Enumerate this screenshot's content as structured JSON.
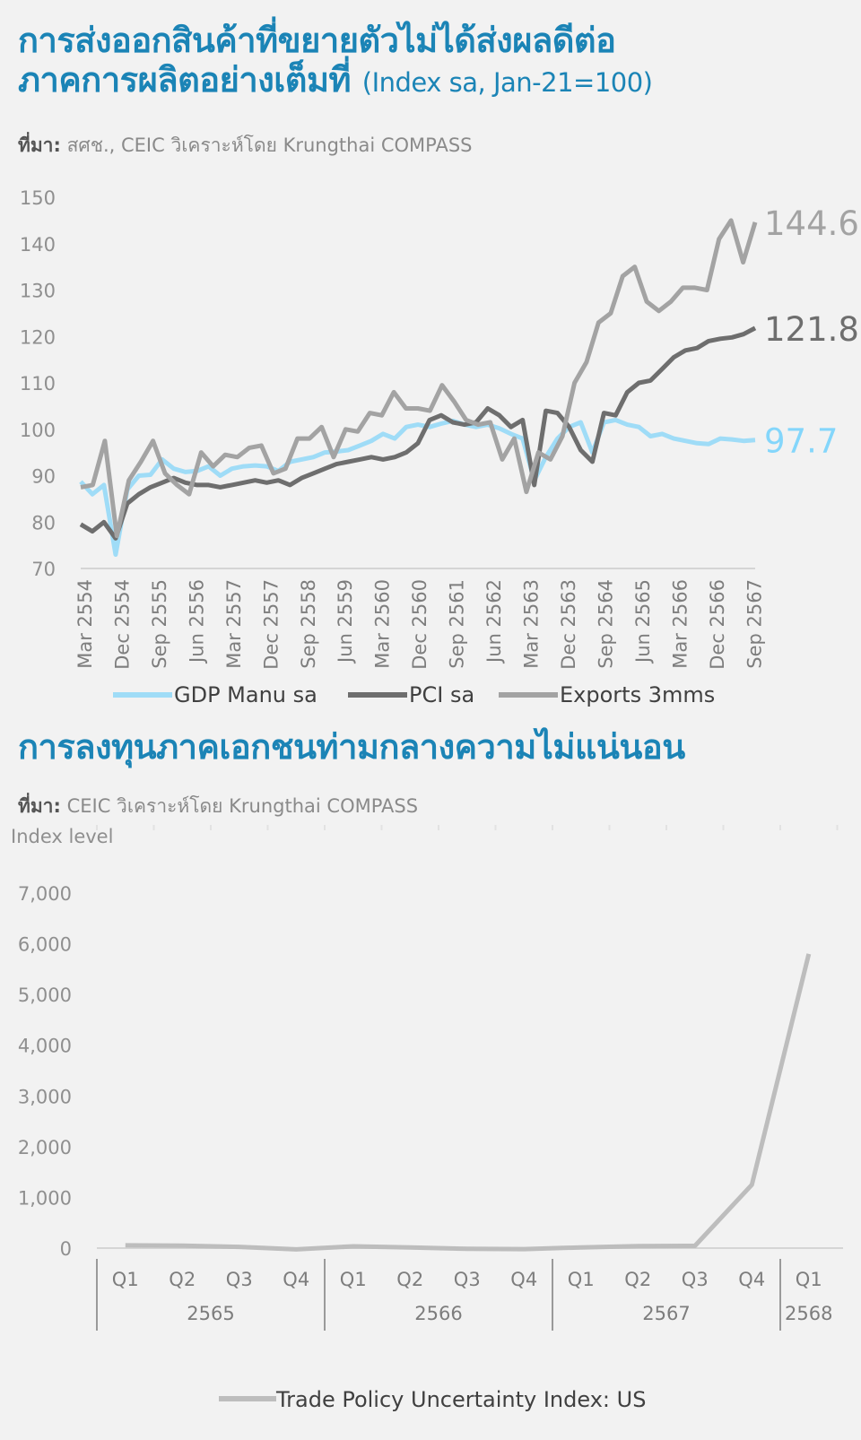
{
  "chart1": {
    "title_line1": "การส่งออกสินค้าที่ขยายตัวไม่ได้ส่งผลดีต่อ",
    "title_line2": "ภาคการผลิตอย่างเต็มที่",
    "title_unit": "(Index sa, Jan-21=100)",
    "source_label": "ที่มา:",
    "source_text": " สศช., CEIC  วิเคราะห์โดย Krungthai COMPASS"
  },
  "chart2": {
    "title": "การลงทุนภาคเอกชนท่ามกลางความไม่แน่นอน",
    "source_label": "ที่มา:",
    "source_text": " CEIC  วิเคราะห์โดย Krungthai COMPASS"
  },
  "chart_data": [
    {
      "type": "line",
      "ylim": [
        70,
        150
      ],
      "yticks": [
        150,
        140,
        130,
        120,
        110,
        100,
        90,
        80,
        70
      ],
      "x_tick_labels": [
        "Mar 2554",
        "Dec 2554",
        "Sep 2555",
        "Jun 2556",
        "Mar 2557",
        "Dec 2557",
        "Sep 2558",
        "Jun 2559",
        "Mar 2560",
        "Dec 2560",
        "Sep 2561",
        "Jun 2562",
        "Mar 2563",
        "Dec 2563",
        "Sep 2564",
        "Jun 2565",
        "Mar 2566",
        "Dec 2566",
        "Sep 2567"
      ],
      "legend_position": "bottom",
      "series": [
        {
          "name": "GDP Manu sa",
          "color": "#9fdcf7",
          "last_label": "97.7",
          "values": [
            88.7,
            86.0,
            88.0,
            73.0,
            87.0,
            90.0,
            90.2,
            93.5,
            91.5,
            90.8,
            91.0,
            92.0,
            90.0,
            91.5,
            92.0,
            92.2,
            92.0,
            91.0,
            93.0,
            93.5,
            94.0,
            95.0,
            95.2,
            95.5,
            96.5,
            97.5,
            99.0,
            98.0,
            100.5,
            101.0,
            100.5,
            101.2,
            101.8,
            101.0,
            100.5,
            101.0,
            100.2,
            99.0,
            98.0,
            89.0,
            94.0,
            98.0,
            100.5,
            101.5,
            95.0,
            101.5,
            102.0,
            101.0,
            100.5,
            98.5,
            99.0,
            98.0,
            97.5,
            97.0,
            96.8,
            98.0,
            97.8,
            97.5,
            97.7
          ]
        },
        {
          "name": "PCI sa",
          "color": "#6e6e6e",
          "last_label": "121.8",
          "values": [
            79.5,
            78.0,
            80.0,
            76.5,
            84.0,
            86.0,
            87.5,
            88.5,
            89.5,
            88.5,
            88.0,
            88.0,
            87.5,
            88.0,
            88.5,
            89.0,
            88.5,
            89.0,
            88.0,
            89.5,
            90.5,
            91.5,
            92.5,
            93.0,
            93.5,
            94.0,
            93.5,
            94.0,
            95.0,
            97.0,
            102.0,
            103.0,
            101.5,
            101.0,
            101.5,
            104.5,
            103.0,
            100.5,
            102.0,
            88.0,
            104.0,
            103.5,
            100.5,
            95.5,
            93.0,
            103.5,
            103.0,
            108.0,
            110.0,
            110.5,
            113.0,
            115.5,
            117.0,
            117.5,
            119.0,
            119.5,
            119.8,
            120.5,
            121.8
          ]
        },
        {
          "name": "Exports 3mms",
          "color": "#a3a3a3",
          "last_label": "144.6",
          "values": [
            87.5,
            88.0,
            97.5,
            77.0,
            89.0,
            93.0,
            97.5,
            90.5,
            88.0,
            86.0,
            95.0,
            92.0,
            94.5,
            94.0,
            96.0,
            96.5,
            90.5,
            91.5,
            98.0,
            98.0,
            100.5,
            94.0,
            100.0,
            99.5,
            103.5,
            103.0,
            108.0,
            104.5,
            104.5,
            104.0,
            109.5,
            106.0,
            102.0,
            101.0,
            101.5,
            93.5,
            98.0,
            86.5,
            95.0,
            93.5,
            98.5,
            110.0,
            114.5,
            123.0,
            125.0,
            133.0,
            135.0,
            127.5,
            125.5,
            127.5,
            130.5,
            130.5,
            130.0,
            141.0,
            145.0,
            136.0,
            144.6
          ]
        }
      ]
    },
    {
      "type": "line",
      "ylabel": "Index level",
      "ylim": [
        0,
        7000
      ],
      "yticks": [
        "7,000",
        "6,000",
        "5,000",
        "4,000",
        "3,000",
        "2,000",
        "1,000",
        "0"
      ],
      "categories": [
        "Q1",
        "Q2",
        "Q3",
        "Q4",
        "Q1",
        "Q2",
        "Q3",
        "Q4",
        "Q1",
        "Q2",
        "Q3",
        "Q4",
        "Q1"
      ],
      "year_groups": [
        {
          "label": "2565",
          "count": 4
        },
        {
          "label": "2566",
          "count": 4
        },
        {
          "label": "2567",
          "count": 4
        },
        {
          "label": "2568",
          "count": 1
        }
      ],
      "legend_position": "bottom",
      "series": [
        {
          "name": "Trade Policy Uncertainty Index: US",
          "color": "#bdbdbd",
          "values": [
            55,
            50,
            25,
            -25,
            35,
            15,
            -15,
            -20,
            15,
            40,
            45,
            1250,
            5800
          ]
        }
      ]
    }
  ]
}
